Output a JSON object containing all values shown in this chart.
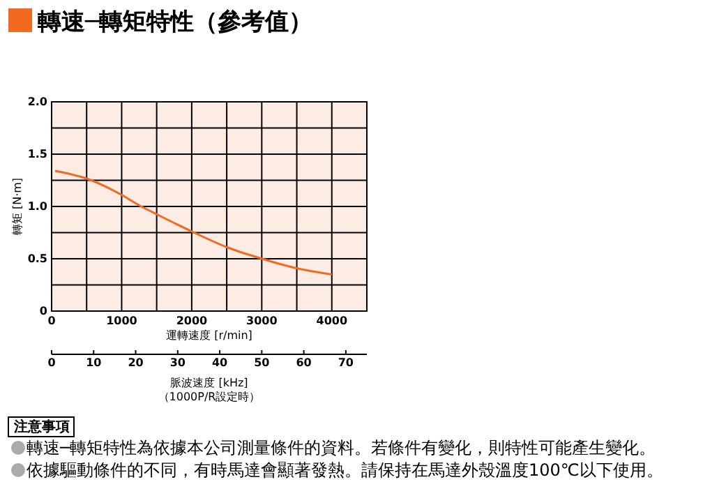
{
  "chart_data": {
    "type": "line",
    "title": "轉速─轉矩特性（參考值）",
    "xlabel": "運轉速度 [r/min]",
    "ylabel": "轉矩 [N·m]",
    "x2label": "脈波速度 [kHz]\n（1000P/R設定時）",
    "x": [
      50,
      527,
      1000,
      1252,
      1516,
      2003,
      2504,
      3005,
      3493,
      4000
    ],
    "series": [
      {
        "color": "#f26a21",
        "values": [
          1.34,
          1.26,
          1.11,
          1.01,
          0.92,
          0.76,
          0.61,
          0.5,
          0.41,
          0.35
        ]
      }
    ],
    "xlim": [
      0,
      4500
    ],
    "xticks": [
      0,
      {
        "value": 500,
        "label": null
      },
      1000,
      {
        "value": 1500,
        "label": null
      },
      2000,
      {
        "value": 2500,
        "label": null
      },
      3000,
      {
        "value": 3500,
        "label": null
      },
      4000,
      {
        "value": 4500,
        "label": null
      }
    ],
    "ylim": [
      0,
      2
    ],
    "yticks": [
      {
        "value": 0,
        "label": "0"
      },
      {
        "value": 0.25,
        "label": null
      },
      {
        "value": 0.5,
        "label": "0.5"
      },
      {
        "value": 0.75,
        "label": null
      },
      {
        "value": 1,
        "label": "1.0"
      },
      {
        "value": 1.25,
        "label": null
      },
      {
        "value": 1.5,
        "label": "1.5"
      },
      {
        "value": 1.75,
        "label": null
      },
      {
        "value": 2,
        "label": "2.0"
      }
    ],
    "x2lim": [
      0,
      75
    ],
    "x2ticks": [
      0,
      10,
      20,
      30,
      40,
      50,
      60,
      70
    ],
    "grid": true,
    "marker": "none",
    "line_style": "solid",
    "annotations": [
      "注意事項",
      "轉速─轉矩特性為依據本公司測量條件的資料。若條件有變化，則特性可能產生變化。",
      "依據驅動條件的不同，有時馬達會顯著發熱。請保持在馬達外殼溫度100℃以下使用。"
    ]
  }
}
